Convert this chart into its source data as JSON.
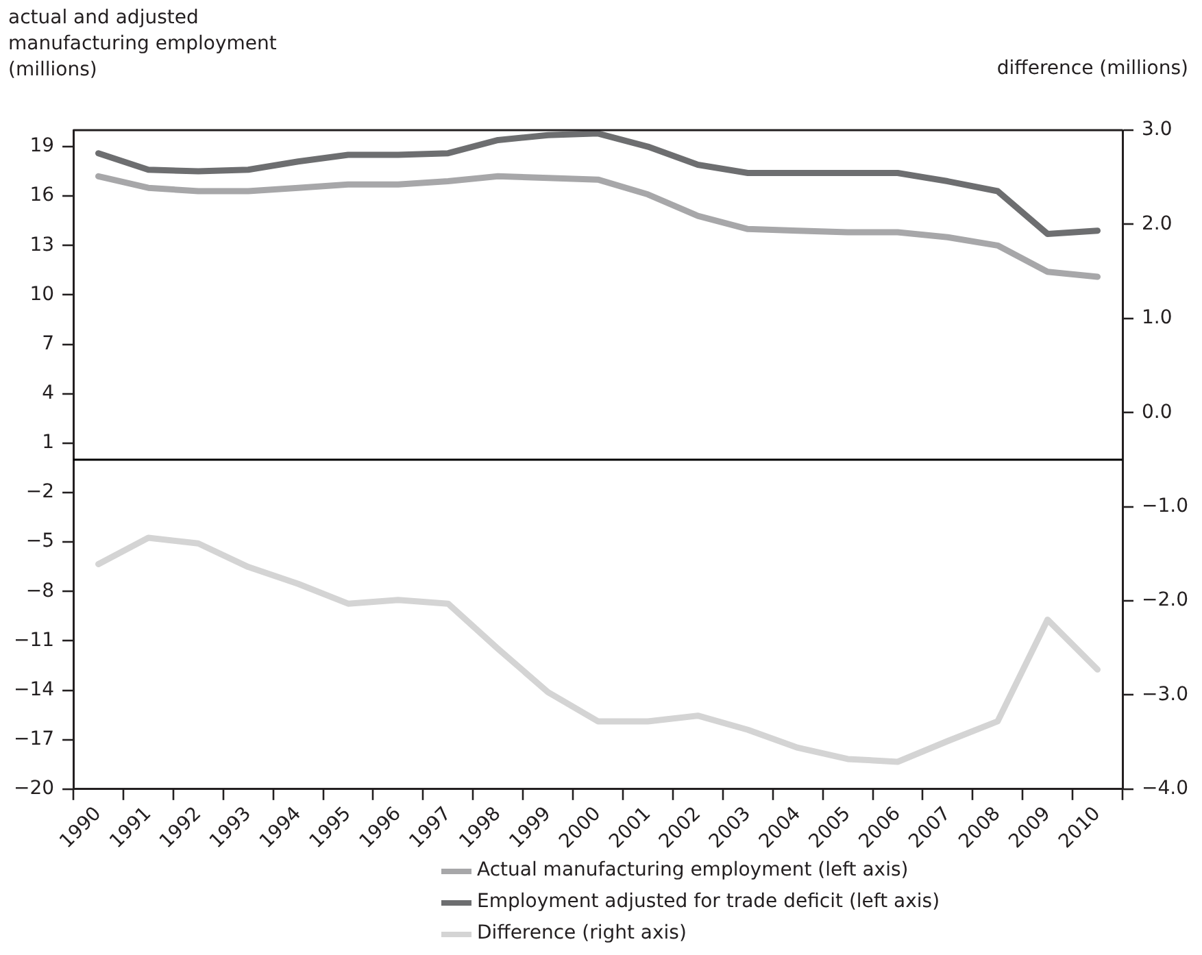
{
  "chart_data": {
    "type": "line",
    "ylabel": "actual and adjusted manufacturing employment (millions)",
    "y2label": "difference (millions)",
    "categories": [
      "1990",
      "1991",
      "1992",
      "1993",
      "1994",
      "1995",
      "1996",
      "1997",
      "1998",
      "1999",
      "2000",
      "2001",
      "2002",
      "2003",
      "2004",
      "2005",
      "2006",
      "2007",
      "2008",
      "2009",
      "2010"
    ],
    "series": [
      {
        "name": "Actual manufacturing employment (left axis)",
        "color": "#a7a7a9",
        "values": [
          17.2,
          16.5,
          16.3,
          16.3,
          16.5,
          16.7,
          16.7,
          16.9,
          17.2,
          17.1,
          17.0,
          16.1,
          14.8,
          14.0,
          13.9,
          13.8,
          13.8,
          13.5,
          13.0,
          11.4,
          11.1
        ]
      },
      {
        "name": "Employment adjusted for trade deficit (left axis)",
        "color": "#6d6e70",
        "values": [
          18.6,
          17.6,
          17.5,
          17.6,
          18.1,
          18.5,
          18.5,
          18.6,
          19.4,
          19.7,
          19.8,
          19.0,
          17.9,
          17.4,
          17.4,
          17.4,
          17.4,
          16.9,
          16.3,
          13.7,
          13.9
        ]
      },
      {
        "name": "Difference (right axis)",
        "color": "#d4d4d4",
        "axis": "y2",
        "values": [
          -1.61,
          -1.33,
          -1.39,
          -1.64,
          -1.82,
          -2.03,
          -1.99,
          -2.03,
          -2.51,
          -2.97,
          -3.28,
          -3.28,
          -3.22,
          -3.37,
          -3.56,
          -3.68,
          -3.71,
          -3.49,
          -3.28,
          -2.2,
          -2.73
        ]
      }
    ],
    "ylim": [
      -20,
      20
    ],
    "yticks": [
      -20,
      -17,
      -14,
      -11,
      -8,
      -5,
      -2,
      1,
      4,
      7,
      10,
      13,
      16,
      19
    ],
    "y2lim": [
      -4,
      3
    ],
    "y2ticks": [
      {
        "value": -4,
        "label": "−4.0"
      },
      {
        "value": -3,
        "label": "−3.0"
      },
      {
        "value": -2,
        "label": "−2.0"
      },
      {
        "value": -1,
        "label": "−1.0"
      },
      {
        "value": 0,
        "label": "0.0"
      },
      {
        "value": 1,
        "label": "1.0"
      },
      {
        "value": 2,
        "label": "2.0"
      },
      {
        "value": 3,
        "label": "3.0"
      }
    ],
    "ref_lines": [
      {
        "axis": "y",
        "value": 0,
        "color": "#000000"
      }
    ],
    "grid": false,
    "legend": "bottom",
    "marker": "none",
    "line_style": "solid"
  }
}
